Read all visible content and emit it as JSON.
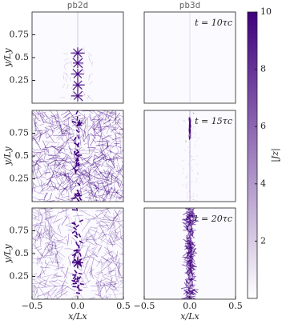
{
  "chart_data": {
    "type": "heatmap",
    "columns": [
      "pb2d",
      "pb3d"
    ],
    "row_labels": [
      "t = 10τc",
      "t = 15τc",
      "t = 20τc"
    ],
    "xlabel": "x/Lx",
    "ylabel": "y/Ly",
    "xlim": [
      -0.5,
      0.5
    ],
    "xticks": [
      {
        "value": -0.5,
        "label": "−0.5"
      },
      {
        "value": 0,
        "label": "0.0"
      },
      0.5
    ],
    "ylim": [
      0,
      1
    ],
    "yticks": [
      0.25,
      0.5,
      0.75
    ],
    "colorbar": {
      "label": "|Jz|",
      "lim": [
        0,
        10
      ],
      "ticks": [
        2,
        4,
        6,
        8,
        10
      ]
    },
    "colormap": [
      "#ffffff",
      "#3f007d"
    ]
  }
}
